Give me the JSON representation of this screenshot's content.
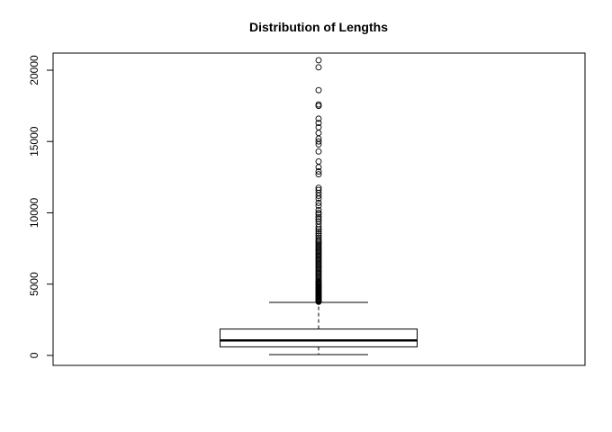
{
  "chart_data": {
    "type": "boxplot",
    "title": "Distribution of Lengths",
    "xlabel": "",
    "ylabel": "",
    "ylim": [
      -700,
      21200
    ],
    "yticks": [
      0,
      5000,
      10000,
      15000,
      20000
    ],
    "grid": false,
    "box": {
      "whisker_low": 60,
      "q1": 600,
      "median": 1050,
      "q3": 1850,
      "whisker_high": 3720
    },
    "outliers": [
      3760,
      3800,
      3850,
      3900,
      3950,
      4000,
      4050,
      4100,
      4150,
      4200,
      4250,
      4300,
      4350,
      4400,
      4450,
      4500,
      4550,
      4600,
      4650,
      4700,
      4750,
      4800,
      4850,
      4900,
      4950,
      5000,
      5050,
      5100,
      5150,
      5200,
      5300,
      5400,
      5500,
      5600,
      5700,
      5800,
      5900,
      6000,
      6100,
      6200,
      6300,
      6400,
      6500,
      6600,
      6700,
      6800,
      6900,
      7000,
      7100,
      7200,
      7300,
      7400,
      7500,
      7600,
      7700,
      7800,
      7900,
      8000,
      8100,
      8250,
      8400,
      8550,
      8700,
      8850,
      9000,
      9200,
      9400,
      9550,
      9700,
      9900,
      10000,
      10200,
      10500,
      10700,
      11000,
      11200,
      11400,
      11600,
      11750,
      12700,
      12900,
      13200,
      13600,
      14300,
      14800,
      15000,
      15200,
      15600,
      16000,
      16300,
      16600,
      17500,
      17600,
      18600,
      20200,
      20700
    ]
  }
}
